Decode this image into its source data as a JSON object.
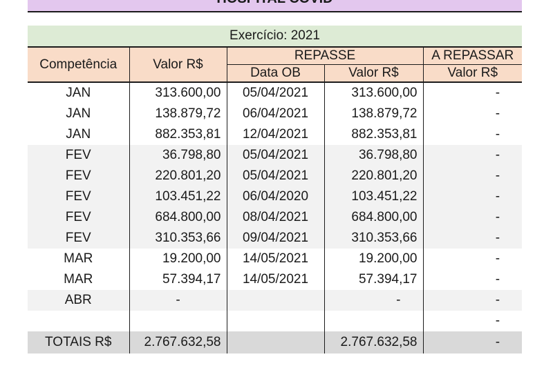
{
  "title": "HOSPITAL COVID",
  "exercise": "Exercício: 2021",
  "headers": {
    "competencia": "Competência",
    "valor": "Valor R$",
    "repasse": "REPASSE",
    "a_repassar": "A REPASSAR",
    "data_ob": "Data OB",
    "repasse_valor": "Valor R$",
    "a_repassar_valor": "Valor R$"
  },
  "rows": [
    {
      "competencia": "JAN",
      "valor": "313.600,00",
      "data_ob": "05/04/2021",
      "repasse_valor": "313.600,00",
      "a_repassar": "-"
    },
    {
      "competencia": "JAN",
      "valor": "138.879,72",
      "data_ob": "06/04/2021",
      "repasse_valor": "138.879,72",
      "a_repassar": "-"
    },
    {
      "competencia": "JAN",
      "valor": "882.353,81",
      "data_ob": "12/04/2021",
      "repasse_valor": "882.353,81",
      "a_repassar": "-"
    },
    {
      "competencia": "FEV",
      "valor": "36.798,80",
      "data_ob": "05/04/2021",
      "repasse_valor": "36.798,80",
      "a_repassar": "-"
    },
    {
      "competencia": "FEV",
      "valor": "220.801,20",
      "data_ob": "05/04/2021",
      "repasse_valor": "220.801,20",
      "a_repassar": "-"
    },
    {
      "competencia": "FEV",
      "valor": "103.451,22",
      "data_ob": "06/04/2020",
      "repasse_valor": "103.451,22",
      "a_repassar": "-"
    },
    {
      "competencia": "FEV",
      "valor": "684.800,00",
      "data_ob": "08/04/2021",
      "repasse_valor": "684.800,00",
      "a_repassar": "-"
    },
    {
      "competencia": "FEV",
      "valor": "310.353,66",
      "data_ob": "09/04/2021",
      "repasse_valor": "310.353,66",
      "a_repassar": "-"
    },
    {
      "competencia": "MAR",
      "valor": "19.200,00",
      "data_ob": "14/05/2021",
      "repasse_valor": "19.200,00",
      "a_repassar": "-"
    },
    {
      "competencia": "MAR",
      "valor": "57.394,17",
      "data_ob": "14/05/2021",
      "repasse_valor": "57.394,17",
      "a_repassar": "-"
    },
    {
      "competencia": "ABR",
      "valor": "-",
      "data_ob": "",
      "repasse_valor": "-",
      "a_repassar": "-"
    },
    {
      "competencia": "",
      "valor": "",
      "data_ob": "",
      "repasse_valor": "",
      "a_repassar": "-"
    }
  ],
  "totals": {
    "label": "TOTAIS R$",
    "valor": "2.767.632,58",
    "data_ob": "",
    "repasse_valor": "2.767.632,58",
    "a_repassar": "-"
  },
  "colors": {
    "title_bg": "#e3c7ee",
    "exercise_bg": "#ddebd5",
    "header_bg": "#f9dcc8",
    "band_bg": "#f2f2f2",
    "total_bg": "#d9d9d9"
  }
}
